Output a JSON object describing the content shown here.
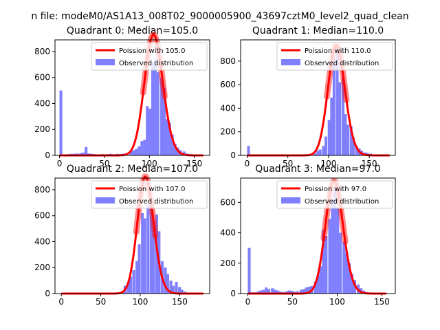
{
  "figure": {
    "suptitle": "n file: modeM0/AS1A13_008T02_9000005900_43697cztM0_level2_quad_clean"
  },
  "colors": {
    "bar": "#8080ff",
    "poisson_line": "#ff0000",
    "poisson_line_alpha": 0.45
  },
  "chart_data": [
    {
      "type": "bar",
      "title": "Quadrant 0: Median=105.0",
      "xlim": [
        -5,
        167
      ],
      "ylim": [
        0,
        890
      ],
      "xticks": [
        0,
        50,
        100,
        150
      ],
      "yticks": [
        0,
        200,
        400,
        600,
        800
      ],
      "legend": {
        "placement": "top-right",
        "entries": [
          "Poission with 105.0",
          "Observed distribution"
        ]
      },
      "hist": {
        "name": "Observed distribution",
        "bin_width": 3.1,
        "bins": [
          [
            0,
            500
          ],
          [
            3,
            8
          ],
          [
            6,
            8
          ],
          [
            9,
            10
          ],
          [
            12,
            12
          ],
          [
            15,
            12
          ],
          [
            18,
            15
          ],
          [
            22,
            18
          ],
          [
            25,
            22
          ],
          [
            28,
            65
          ],
          [
            31,
            15
          ],
          [
            34,
            12
          ],
          [
            37,
            10
          ],
          [
            40,
            8
          ],
          [
            43,
            8
          ],
          [
            46,
            10
          ],
          [
            50,
            8
          ],
          [
            53,
            10
          ],
          [
            56,
            12
          ],
          [
            59,
            8
          ],
          [
            62,
            12
          ],
          [
            65,
            10
          ],
          [
            68,
            12
          ],
          [
            71,
            15
          ],
          [
            74,
            20
          ],
          [
            78,
            30
          ],
          [
            81,
            40
          ],
          [
            84,
            50
          ],
          [
            87,
            70
          ],
          [
            90,
            110
          ],
          [
            93,
            120
          ],
          [
            96,
            380
          ],
          [
            99,
            360
          ],
          [
            102,
            720
          ],
          [
            105,
            745
          ],
          [
            108,
            640
          ],
          [
            112,
            600
          ],
          [
            115,
            520
          ],
          [
            118,
            280
          ],
          [
            121,
            250
          ],
          [
            124,
            160
          ],
          [
            127,
            90
          ],
          [
            130,
            60
          ],
          [
            133,
            40
          ],
          [
            137,
            30
          ],
          [
            140,
            15
          ],
          [
            143,
            10
          ],
          [
            146,
            8
          ],
          [
            149,
            5
          ],
          [
            155,
            5
          ]
        ]
      },
      "poisson": {
        "name": "Poission with 105.0",
        "lambda": 105.0,
        "x": [
          0,
          160
        ],
        "peak": 930
      }
    },
    {
      "type": "bar",
      "title": "Quadrant 1: Median=110.0",
      "xlim": [
        -8,
        182
      ],
      "ylim": [
        0,
        980
      ],
      "xticks": [
        0,
        50,
        100,
        150
      ],
      "yticks": [
        0,
        200,
        400,
        600,
        800
      ],
      "legend": {
        "placement": "top-right",
        "entries": [
          "Poission with 110.0",
          "Observed distribution"
        ]
      },
      "hist": {
        "name": "Observed distribution",
        "bin_width": 3.4,
        "bins": [
          [
            0,
            80
          ],
          [
            3,
            8
          ],
          [
            7,
            8
          ],
          [
            10,
            8
          ],
          [
            14,
            8
          ],
          [
            17,
            8
          ],
          [
            20,
            8
          ],
          [
            24,
            8
          ],
          [
            27,
            8
          ],
          [
            31,
            8
          ],
          [
            34,
            8
          ],
          [
            38,
            8
          ],
          [
            41,
            8
          ],
          [
            44,
            8
          ],
          [
            48,
            8
          ],
          [
            51,
            8
          ],
          [
            55,
            8
          ],
          [
            58,
            8
          ],
          [
            61,
            8
          ],
          [
            65,
            8
          ],
          [
            68,
            8
          ],
          [
            72,
            8
          ],
          [
            75,
            8
          ],
          [
            78,
            10
          ],
          [
            82,
            15
          ],
          [
            85,
            40
          ],
          [
            88,
            50
          ],
          [
            92,
            80
          ],
          [
            95,
            160
          ],
          [
            99,
            300
          ],
          [
            102,
            490
          ],
          [
            105,
            830
          ],
          [
            109,
            870
          ],
          [
            112,
            620
          ],
          [
            116,
            660
          ],
          [
            119,
            350
          ],
          [
            122,
            260
          ],
          [
            126,
            250
          ],
          [
            129,
            150
          ],
          [
            133,
            80
          ],
          [
            136,
            60
          ],
          [
            139,
            40
          ],
          [
            143,
            25
          ],
          [
            146,
            20
          ],
          [
            150,
            15
          ],
          [
            153,
            8
          ],
          [
            156,
            5
          ],
          [
            160,
            5
          ],
          [
            170,
            5
          ]
        ]
      },
      "poisson": {
        "name": "Poission with 110.0",
        "lambda": 110.0,
        "x": [
          0,
          175
        ],
        "peak": 930
      }
    },
    {
      "type": "bar",
      "title": "Quadrant 2: Median=107.0",
      "xlim": [
        -8,
        188
      ],
      "ylim": [
        0,
        890
      ],
      "xticks": [
        0,
        50,
        100,
        150
      ],
      "yticks": [
        0,
        200,
        400,
        600,
        800
      ],
      "legend": {
        "placement": "top-right",
        "entries": [
          "Poission with 107.0",
          "Observed distribution"
        ]
      },
      "hist": {
        "name": "Observed distribution",
        "bin_width": 3.6,
        "bins": [
          [
            72,
            8
          ],
          [
            76,
            20
          ],
          [
            79,
            60
          ],
          [
            83,
            80
          ],
          [
            86,
            130
          ],
          [
            90,
            180
          ],
          [
            94,
            250
          ],
          [
            97,
            380
          ],
          [
            101,
            620
          ],
          [
            104,
            580
          ],
          [
            108,
            680
          ],
          [
            112,
            720
          ],
          [
            115,
            560
          ],
          [
            119,
            610
          ],
          [
            122,
            480
          ],
          [
            126,
            250
          ],
          [
            130,
            200
          ],
          [
            133,
            150
          ],
          [
            137,
            100
          ],
          [
            140,
            60
          ],
          [
            144,
            90
          ],
          [
            148,
            50
          ],
          [
            151,
            30
          ],
          [
            155,
            15
          ],
          [
            158,
            8
          ],
          [
            162,
            5
          ]
        ]
      },
      "poisson": {
        "name": "Poission with 107.0",
        "lambda": 107.0,
        "x": [
          0,
          180
        ],
        "peak": 900
      }
    },
    {
      "type": "bar",
      "title": "Quadrant 3: Median=97.0",
      "xlim": [
        -8,
        165
      ],
      "ylim": [
        0,
        760
      ],
      "xticks": [
        0,
        50,
        100,
        150
      ],
      "yticks": [
        0,
        200,
        400,
        600
      ],
      "legend": {
        "placement": "top-right",
        "entries": [
          "Poission with 97.0",
          "Observed distribution"
        ]
      },
      "hist": {
        "name": "Observed distribution",
        "bin_width": 3.2,
        "bins": [
          [
            0,
            300
          ],
          [
            3,
            8
          ],
          [
            6,
            8
          ],
          [
            10,
            15
          ],
          [
            13,
            20
          ],
          [
            16,
            25
          ],
          [
            19,
            40
          ],
          [
            22,
            30
          ],
          [
            26,
            35
          ],
          [
            29,
            25
          ],
          [
            32,
            20
          ],
          [
            35,
            12
          ],
          [
            38,
            10
          ],
          [
            42,
            15
          ],
          [
            45,
            20
          ],
          [
            48,
            18
          ],
          [
            51,
            12
          ],
          [
            54,
            15
          ],
          [
            58,
            25
          ],
          [
            61,
            30
          ],
          [
            64,
            40
          ],
          [
            67,
            45
          ],
          [
            70,
            50
          ],
          [
            74,
            80
          ],
          [
            77,
            120
          ],
          [
            80,
            180
          ],
          [
            83,
            420
          ],
          [
            86,
            380
          ],
          [
            90,
            490
          ],
          [
            93,
            620
          ],
          [
            96,
            700
          ],
          [
            99,
            560
          ],
          [
            102,
            400
          ],
          [
            106,
            340
          ],
          [
            109,
            270
          ],
          [
            112,
            200
          ],
          [
            115,
            130
          ],
          [
            118,
            90
          ],
          [
            122,
            60
          ],
          [
            125,
            35
          ],
          [
            128,
            20
          ],
          [
            131,
            10
          ],
          [
            134,
            5
          ]
        ]
      },
      "poisson": {
        "name": "Poission with 97.0",
        "lambda": 97.0,
        "x": [
          0,
          155
        ],
        "peak": 740
      }
    }
  ]
}
